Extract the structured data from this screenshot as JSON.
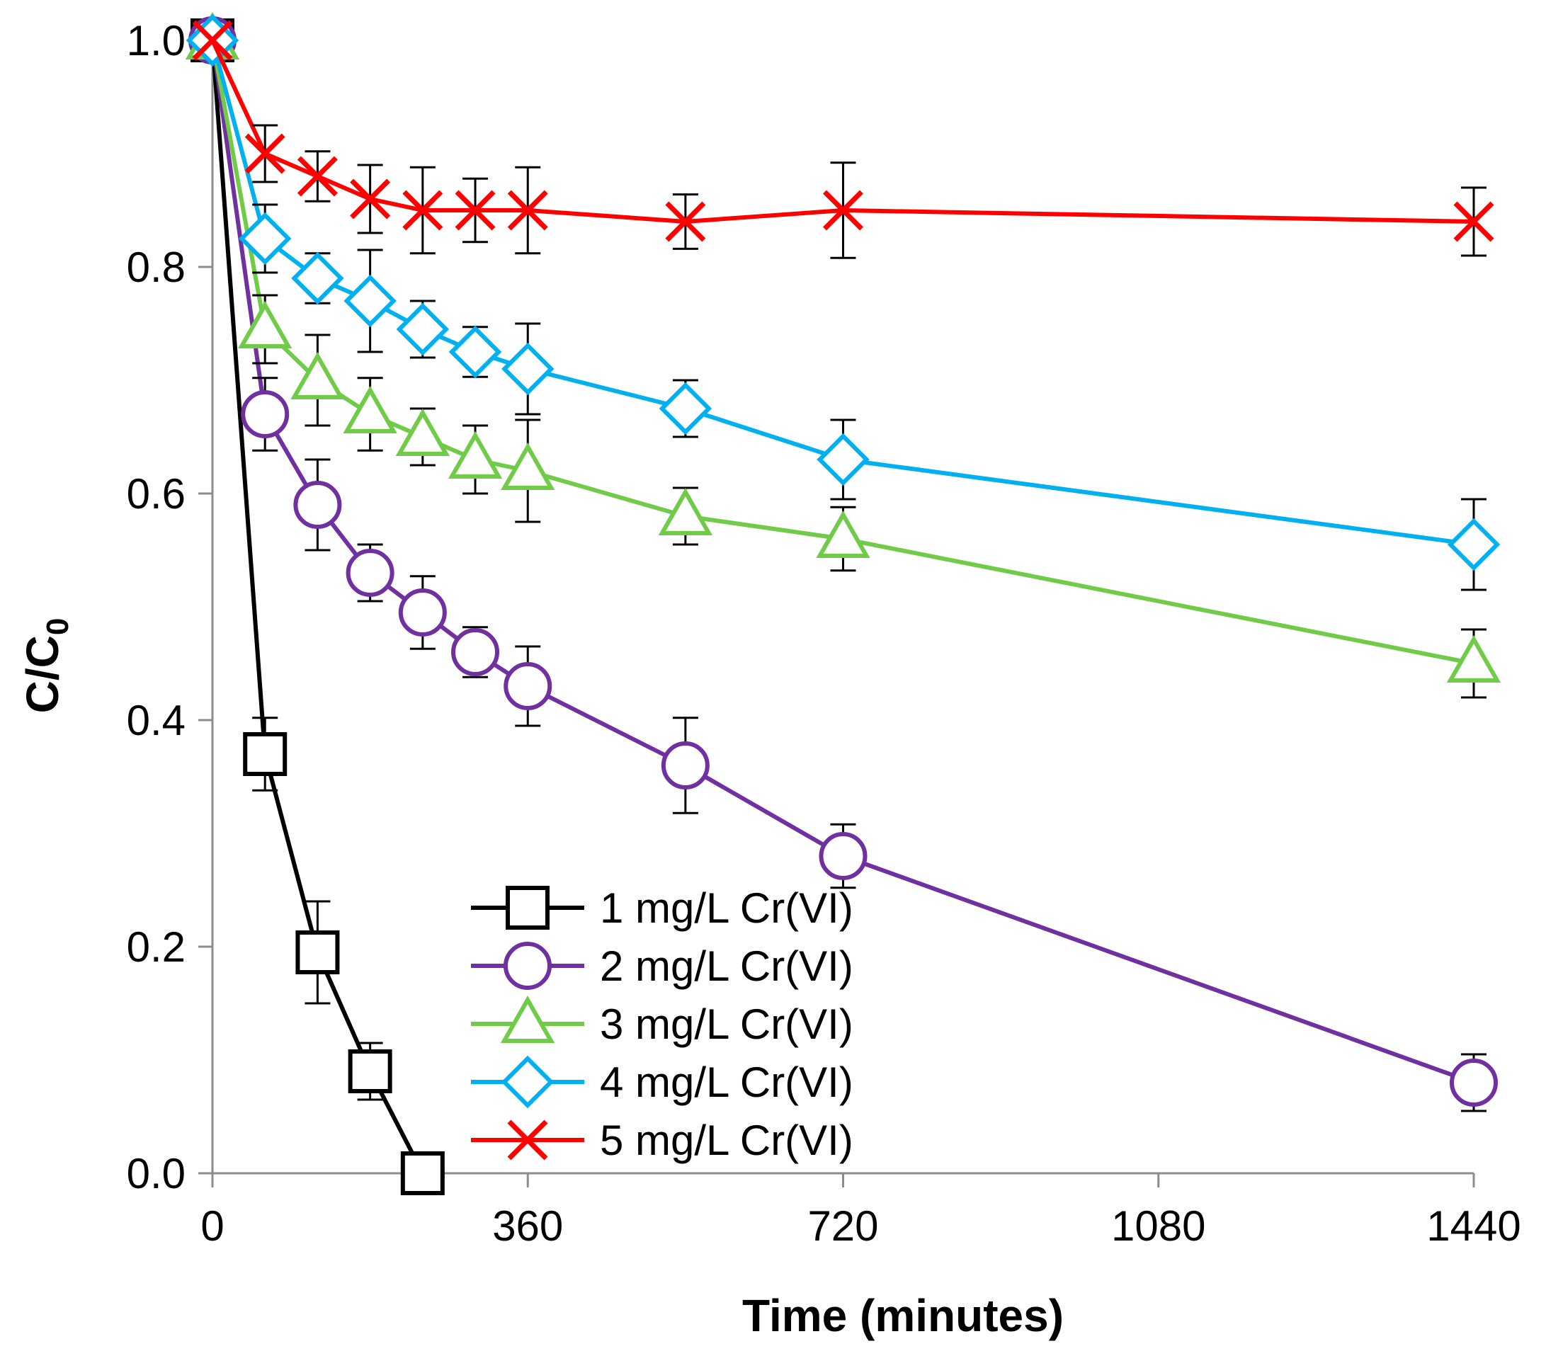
{
  "chart_data": {
    "type": "line",
    "title": "",
    "xlabel": "Time (minutes)",
    "ylabel_main": "C/C",
    "ylabel_sub": "0",
    "xlim": [
      0,
      1440
    ],
    "ylim": [
      0,
      1.0
    ],
    "xticks": [
      0,
      360,
      720,
      1080,
      1440
    ],
    "xtick_labels": [
      "0",
      "360",
      "720",
      "1080",
      "1440"
    ],
    "yticks": [
      0,
      0.2,
      0.4,
      0.6,
      0.8,
      1.0
    ],
    "ytick_labels": [
      "0.0",
      "0.2",
      "0.4",
      "0.6",
      "0.8",
      "1.0"
    ],
    "grid": false,
    "legend_position": "bottom-center",
    "series": [
      {
        "name": "1 mg/L Cr(VI)",
        "color": "#000000",
        "marker": "square",
        "x": [
          0,
          60,
          120,
          180,
          240
        ],
        "y": [
          1.0,
          0.37,
          0.195,
          0.09,
          0.0
        ],
        "err": [
          0.0,
          0.032,
          0.045,
          0.025,
          0.0
        ]
      },
      {
        "name": "2 mg/L Cr(VI)",
        "color": "#7030A0",
        "marker": "circle",
        "x": [
          0,
          60,
          120,
          180,
          240,
          300,
          360,
          540,
          720,
          1440
        ],
        "y": [
          1.0,
          0.67,
          0.59,
          0.53,
          0.495,
          0.46,
          0.43,
          0.36,
          0.28,
          0.08
        ],
        "err": [
          0.0,
          0.032,
          0.04,
          0.025,
          0.032,
          0.022,
          0.035,
          0.042,
          0.028,
          0.025
        ]
      },
      {
        "name": "3 mg/L Cr(VI)",
        "color": "#70CC48",
        "marker": "triangle",
        "x": [
          0,
          60,
          120,
          180,
          240,
          300,
          360,
          540,
          720,
          1440
        ],
        "y": [
          1.0,
          0.745,
          0.7,
          0.67,
          0.65,
          0.63,
          0.62,
          0.58,
          0.56,
          0.45
        ],
        "err": [
          0.0,
          0.03,
          0.04,
          0.032,
          0.025,
          0.03,
          0.045,
          0.025,
          0.028,
          0.03
        ]
      },
      {
        "name": "4 mg/L Cr(VI)",
        "color": "#00B0F0",
        "marker": "diamond",
        "x": [
          0,
          60,
          120,
          180,
          240,
          300,
          360,
          540,
          720,
          1440
        ],
        "y": [
          1.0,
          0.825,
          0.79,
          0.77,
          0.745,
          0.725,
          0.71,
          0.675,
          0.63,
          0.555
        ],
        "err": [
          0.0,
          0.03,
          0.022,
          0.045,
          0.025,
          0.022,
          0.04,
          0.025,
          0.035,
          0.04
        ]
      },
      {
        "name": "5 mg/L Cr(VI)",
        "color": "#FF0000",
        "marker": "x",
        "x": [
          0,
          60,
          120,
          180,
          240,
          300,
          360,
          540,
          720,
          1440
        ],
        "y": [
          1.0,
          0.9,
          0.88,
          0.86,
          0.85,
          0.85,
          0.85,
          0.84,
          0.85,
          0.84
        ],
        "err": [
          0.0,
          0.025,
          0.022,
          0.03,
          0.038,
          0.028,
          0.038,
          0.024,
          0.042,
          0.03
        ]
      }
    ]
  }
}
